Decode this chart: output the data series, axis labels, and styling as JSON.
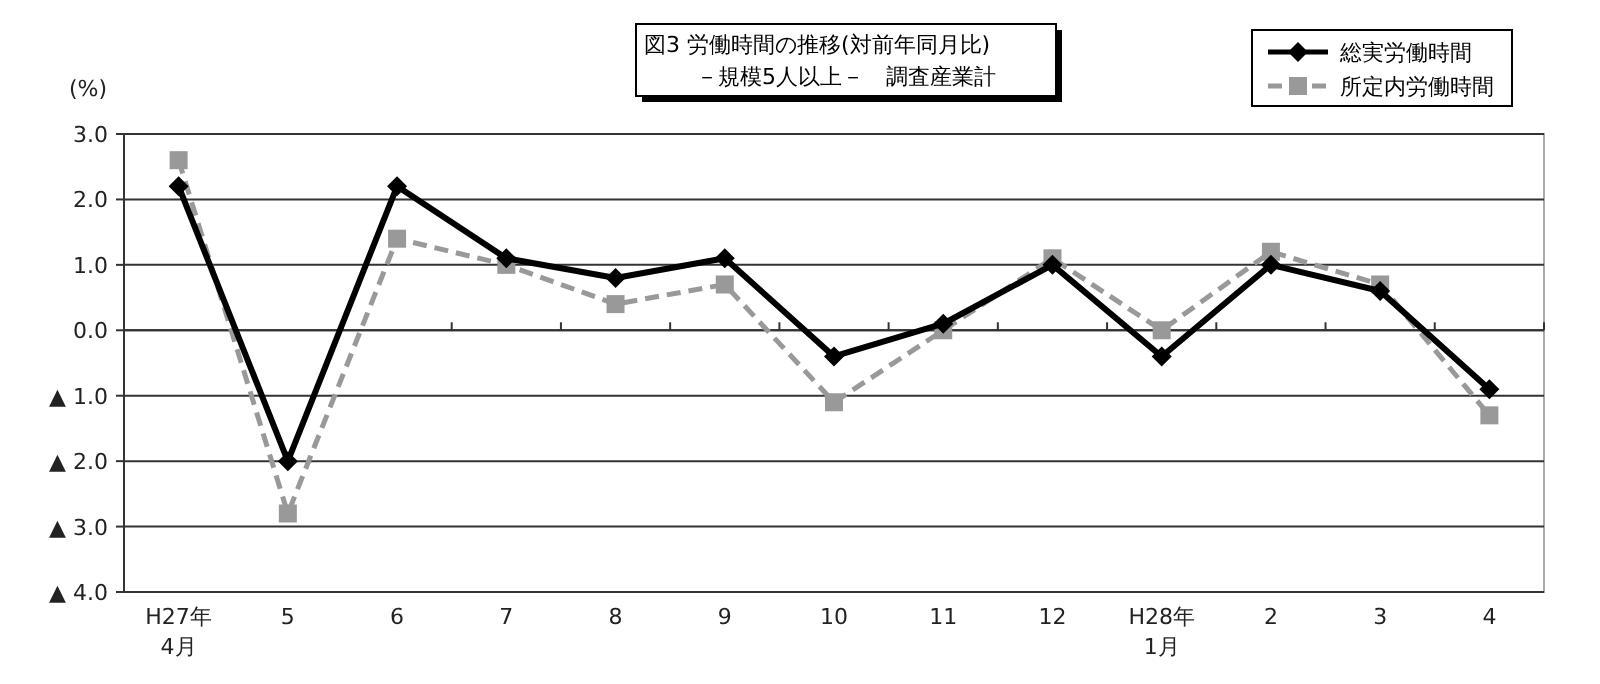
{
  "chart_data": {
    "type": "line",
    "title": "図3 労働時間の推移(対前年同月比)",
    "subtitle": "－規模5人以上－　調査産業計",
    "ylabel": "(%)",
    "categories": [
      "H27年\n4月",
      "5",
      "6",
      "7",
      "8",
      "9",
      "10",
      "11",
      "12",
      "H28年\n1月",
      "2",
      "3",
      "4"
    ],
    "series": [
      {
        "name": "総実労働時間",
        "color": "#000000",
        "marker": "diamond",
        "line_style": "solid",
        "values": [
          2.2,
          -2.0,
          2.2,
          1.1,
          0.8,
          1.1,
          -0.4,
          0.1,
          1.0,
          -0.4,
          1.0,
          0.6,
          -0.9
        ]
      },
      {
        "name": "所定内労働時間",
        "color": "#999999",
        "marker": "square",
        "line_style": "dashed",
        "values": [
          2.6,
          -2.8,
          1.4,
          1.0,
          0.4,
          0.7,
          -1.1,
          0.0,
          1.1,
          0.0,
          1.2,
          0.7,
          -1.3
        ]
      }
    ],
    "ylim": [
      -4,
      3
    ],
    "yticks": [
      {
        "value": 3,
        "label": "3.0"
      },
      {
        "value": 2,
        "label": "2.0"
      },
      {
        "value": 1,
        "label": "1.0"
      },
      {
        "value": 0,
        "label": "0.0"
      },
      {
        "value": -1,
        "label": "▲ 1.0"
      },
      {
        "value": -2,
        "label": "▲ 2.0"
      },
      {
        "value": -3,
        "label": "▲ 3.0"
      },
      {
        "value": -4,
        "label": "▲ 4.0"
      }
    ],
    "grid": "y",
    "legend": "top right"
  }
}
